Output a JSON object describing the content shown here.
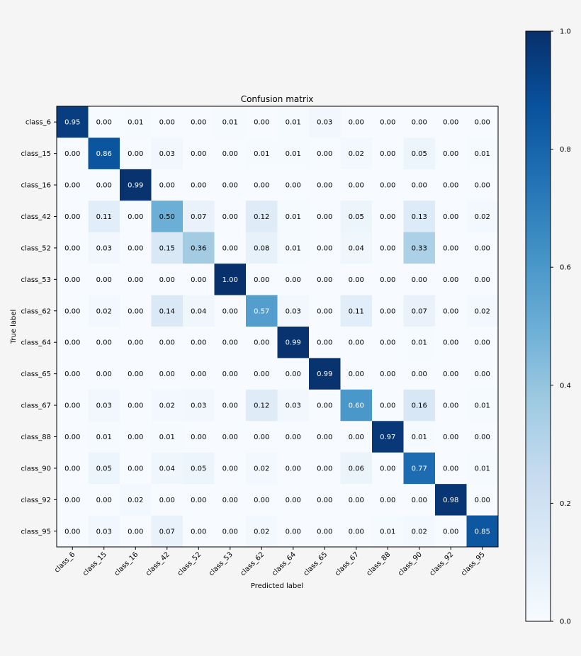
{
  "chart_data": {
    "type": "heatmap",
    "title": "Confusion matrix",
    "xlabel": "Predicted label",
    "ylabel": "True label",
    "row_labels": [
      "class_6",
      "class_15",
      "class_16",
      "class_42",
      "class_52",
      "class_53",
      "class_62",
      "class_64",
      "class_65",
      "class_67",
      "class_88",
      "class_90",
      "class_92",
      "class_95"
    ],
    "col_labels": [
      "class_6",
      "class_15",
      "class_16",
      "class_42",
      "class_52",
      "class_53",
      "class_62",
      "class_64",
      "class_65",
      "class_67",
      "class_88",
      "class_90",
      "class_92",
      "class_95"
    ],
    "values": [
      [
        0.95,
        0.0,
        0.01,
        0.0,
        0.0,
        0.01,
        0.0,
        0.01,
        0.03,
        0.0,
        0.0,
        0.0,
        0.0,
        0.0
      ],
      [
        0.0,
        0.86,
        0.0,
        0.03,
        0.0,
        0.0,
        0.01,
        0.01,
        0.0,
        0.02,
        0.0,
        0.05,
        0.0,
        0.01
      ],
      [
        0.0,
        0.0,
        0.99,
        0.0,
        0.0,
        0.0,
        0.0,
        0.0,
        0.0,
        0.0,
        0.0,
        0.0,
        0.0,
        0.0
      ],
      [
        0.0,
        0.11,
        0.0,
        0.5,
        0.07,
        0.0,
        0.12,
        0.01,
        0.0,
        0.05,
        0.0,
        0.13,
        0.0,
        0.02
      ],
      [
        0.0,
        0.03,
        0.0,
        0.15,
        0.36,
        0.0,
        0.08,
        0.01,
        0.0,
        0.04,
        0.0,
        0.33,
        0.0,
        0.0
      ],
      [
        0.0,
        0.0,
        0.0,
        0.0,
        0.0,
        1.0,
        0.0,
        0.0,
        0.0,
        0.0,
        0.0,
        0.0,
        0.0,
        0.0
      ],
      [
        0.0,
        0.02,
        0.0,
        0.14,
        0.04,
        0.0,
        0.57,
        0.03,
        0.0,
        0.11,
        0.0,
        0.07,
        0.0,
        0.02
      ],
      [
        0.0,
        0.0,
        0.0,
        0.0,
        0.0,
        0.0,
        0.0,
        0.99,
        0.0,
        0.0,
        0.0,
        0.01,
        0.0,
        0.0
      ],
      [
        0.0,
        0.0,
        0.0,
        0.0,
        0.0,
        0.0,
        0.0,
        0.0,
        0.99,
        0.0,
        0.0,
        0.0,
        0.0,
        0.0
      ],
      [
        0.0,
        0.03,
        0.0,
        0.02,
        0.03,
        0.0,
        0.12,
        0.03,
        0.0,
        0.6,
        0.0,
        0.16,
        0.0,
        0.01
      ],
      [
        0.0,
        0.01,
        0.0,
        0.01,
        0.0,
        0.0,
        0.0,
        0.0,
        0.0,
        0.0,
        0.97,
        0.01,
        0.0,
        0.0
      ],
      [
        0.0,
        0.05,
        0.0,
        0.04,
        0.05,
        0.0,
        0.02,
        0.0,
        0.0,
        0.06,
        0.0,
        0.77,
        0.0,
        0.01
      ],
      [
        0.0,
        0.0,
        0.02,
        0.0,
        0.0,
        0.0,
        0.0,
        0.0,
        0.0,
        0.0,
        0.0,
        0.0,
        0.98,
        0.0
      ],
      [
        0.0,
        0.03,
        0.0,
        0.07,
        0.0,
        0.0,
        0.02,
        0.0,
        0.0,
        0.0,
        0.01,
        0.02,
        0.0,
        0.85
      ]
    ],
    "colorbar": {
      "range": [
        0,
        1
      ],
      "ticks": [
        "0.0",
        "0.2",
        "0.4",
        "0.6",
        "0.8",
        "1.0"
      ],
      "colormap": "Blues"
    },
    "text_threshold": 0.5,
    "colors": {
      "background": "#f5f5f5",
      "text_dark": "#000000",
      "text_light": "#ffffff"
    }
  }
}
